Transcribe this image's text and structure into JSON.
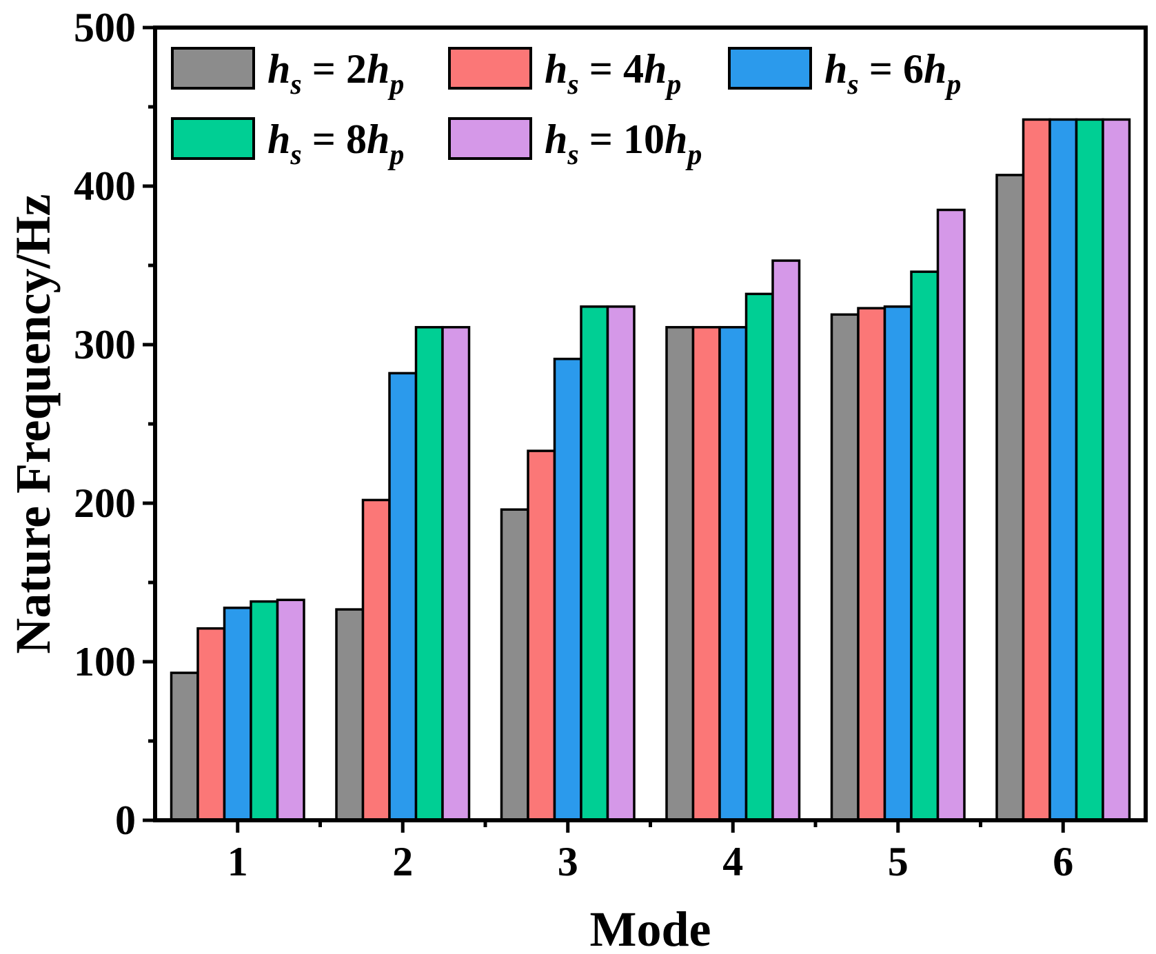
{
  "chart_data": {
    "type": "bar",
    "title": "",
    "xlabel": "Mode",
    "ylabel": "Nature Frequency/Hz",
    "categories": [
      "1",
      "2",
      "3",
      "4",
      "5",
      "6"
    ],
    "ylim": [
      0,
      500
    ],
    "yticks": [
      "0",
      "100",
      "200",
      "300",
      "400",
      "500"
    ],
    "grid": false,
    "legend_position": "top-left",
    "series": [
      {
        "name": "h_s = 2h_p",
        "var": "h",
        "sub": "s",
        "eq": " = ",
        "coef": "2",
        "var2": "h",
        "sub2": "p",
        "color": "#8c8c8c",
        "values": [
          93,
          133,
          196,
          311,
          319,
          407
        ]
      },
      {
        "name": "h_s = 4h_p",
        "var": "h",
        "sub": "s",
        "eq": " = ",
        "coef": "4",
        "var2": "h",
        "sub2": "p",
        "color": "#fb7777",
        "values": [
          121,
          202,
          233,
          311,
          323,
          442
        ]
      },
      {
        "name": "h_s = 6h_p",
        "var": "h",
        "sub": "s",
        "eq": " = ",
        "coef": "6",
        "var2": "h",
        "sub2": "p",
        "color": "#2b9aec",
        "values": [
          134,
          282,
          291,
          311,
          324,
          442
        ]
      },
      {
        "name": "h_s = 8h_p",
        "var": "h",
        "sub": "s",
        "eq": " = ",
        "coef": "8",
        "var2": "h",
        "sub2": "p",
        "color": "#00cf94",
        "values": [
          138,
          311,
          324,
          332,
          346,
          442
        ]
      },
      {
        "name": "h_s = 10h_p",
        "var": "h",
        "sub": "s",
        "eq": " = ",
        "coef": "10",
        "var2": "h",
        "sub2": "p",
        "color": "#d598e8",
        "values": [
          139,
          311,
          324,
          353,
          385,
          442
        ]
      }
    ]
  }
}
